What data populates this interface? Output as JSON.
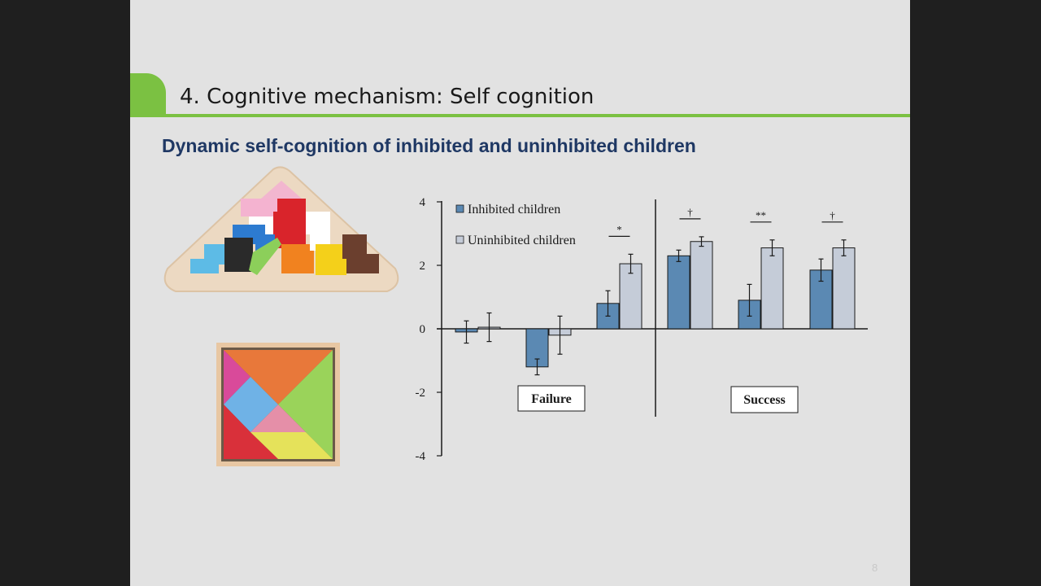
{
  "slide": {
    "title": "4. Cognitive mechanism: Self cognition",
    "subtitle": "Dynamic self-cognition of inhibited and uninhibited children",
    "page_number": "8"
  },
  "images": [
    {
      "name": "triangle-tetris-puzzle"
    },
    {
      "name": "tangram-puzzle"
    }
  ],
  "colors": {
    "inhibited": "#5b89b3",
    "uninhibited": "#c5ccd8",
    "accent": "#7bc142",
    "subtitle": "#1f3864"
  },
  "chart_data": {
    "type": "bar",
    "categories": [
      "",
      "",
      "",
      "",
      "",
      ""
    ],
    "groups": [
      {
        "label": "Failure",
        "category_indices": [
          0,
          1,
          2
        ]
      },
      {
        "label": "Success",
        "category_indices": [
          3,
          4,
          5
        ]
      }
    ],
    "series": [
      {
        "name": "Inhibited children",
        "values": [
          -0.1,
          -1.2,
          0.8,
          2.3,
          0.9,
          1.85
        ],
        "errors": [
          0.35,
          0.25,
          0.4,
          0.18,
          0.5,
          0.35
        ]
      },
      {
        "name": "Uninhibited children",
        "values": [
          0.05,
          -0.2,
          2.05,
          2.75,
          2.55,
          2.55
        ],
        "errors": [
          0.45,
          0.6,
          0.3,
          0.15,
          0.25,
          0.25
        ]
      }
    ],
    "significance": [
      "",
      "",
      "*",
      "†",
      "**",
      "†"
    ],
    "yticks": [
      4,
      2,
      0,
      -2,
      -4
    ],
    "ylim": [
      -4,
      4
    ],
    "legend_position": "top-left"
  }
}
